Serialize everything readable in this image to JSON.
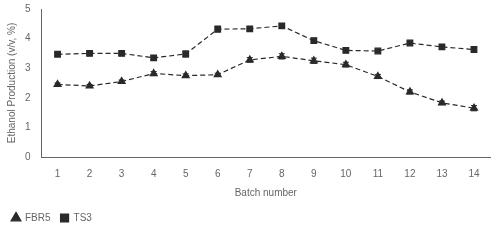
{
  "chart_data": {
    "type": "line",
    "x_label": "Batch number",
    "y_label": "Ethanol Production (v/v, %)",
    "x": [
      1,
      2,
      3,
      4,
      5,
      6,
      7,
      8,
      9,
      10,
      11,
      12,
      13,
      14
    ],
    "series": [
      {
        "name": "FBR5",
        "color": "#2a2a2a",
        "marker": "triangle",
        "line_style": "dashed",
        "values": [
          2.45,
          2.4,
          2.55,
          2.82,
          2.75,
          2.78,
          3.28,
          3.4,
          3.25,
          3.12,
          2.72,
          2.2,
          1.83,
          1.65
        ],
        "errors": [
          0.05,
          0.05,
          0.05,
          0.07,
          0.06,
          0.05,
          0.08,
          0.09,
          0.09,
          0.08,
          0.07,
          0.07,
          0.06,
          0.09
        ]
      },
      {
        "name": "TS3",
        "color": "#2a2a2a",
        "marker": "square",
        "line_style": "dashed",
        "values": [
          3.47,
          3.5,
          3.5,
          3.35,
          3.48,
          4.32,
          4.33,
          4.43,
          3.93,
          3.6,
          3.58,
          3.85,
          3.72,
          3.63
        ],
        "errors": [
          0.05,
          0.04,
          0.04,
          0.06,
          0.1,
          0.1,
          0.05,
          0.06,
          0.05,
          0.05,
          0.05,
          0.06,
          0.08,
          0.07
        ]
      }
    ],
    "xlim": [
      0.5,
      14.5
    ],
    "xticks": [
      1,
      2,
      3,
      4,
      5,
      6,
      7,
      8,
      9,
      10,
      11,
      12,
      13,
      14
    ],
    "ylim": [
      0,
      5
    ],
    "yticks": [
      0,
      1,
      2,
      3,
      4,
      5
    ],
    "grid": false,
    "legend": "lower left"
  }
}
